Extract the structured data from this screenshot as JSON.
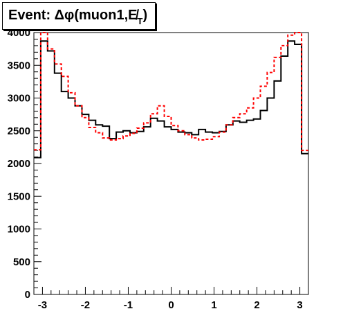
{
  "title": {
    "prefix": "Event: Δφ(muon1,",
    "symbol": "E̸",
    "subscript": "T",
    "suffix": ")"
  },
  "chart_data": {
    "type": "histogram",
    "xlim": [
      -3.2,
      3.2
    ],
    "ylim": [
      0,
      4000
    ],
    "x_ticks": [
      -3,
      -2,
      -1,
      0,
      1,
      2,
      3
    ],
    "y_ticks": [
      0,
      500,
      1000,
      1500,
      2000,
      2500,
      3000,
      3500,
      4000
    ],
    "bins": 40,
    "series": [
      {
        "style": "solid",
        "color": "#000000",
        "values": [
          2090,
          3870,
          3720,
          3380,
          3100,
          3000,
          2880,
          2750,
          2660,
          2590,
          2570,
          2380,
          2480,
          2500,
          2470,
          2490,
          2560,
          2690,
          2650,
          2560,
          2520,
          2480,
          2470,
          2440,
          2520,
          2480,
          2470,
          2490,
          2590,
          2650,
          2630,
          2660,
          2680,
          2810,
          3000,
          3260,
          3640,
          3870,
          3820,
          2150
        ]
      },
      {
        "style": "dashed",
        "color": "#ff0000",
        "values": [
          2210,
          4000,
          3750,
          3520,
          3330,
          3080,
          2880,
          2700,
          2550,
          2470,
          2390,
          2360,
          2380,
          2420,
          2460,
          2540,
          2620,
          2760,
          2880,
          2720,
          2580,
          2500,
          2440,
          2390,
          2360,
          2370,
          2410,
          2480,
          2590,
          2700,
          2760,
          2850,
          3000,
          3180,
          3390,
          3620,
          3800,
          3960,
          4000,
          2200
        ]
      }
    ]
  }
}
